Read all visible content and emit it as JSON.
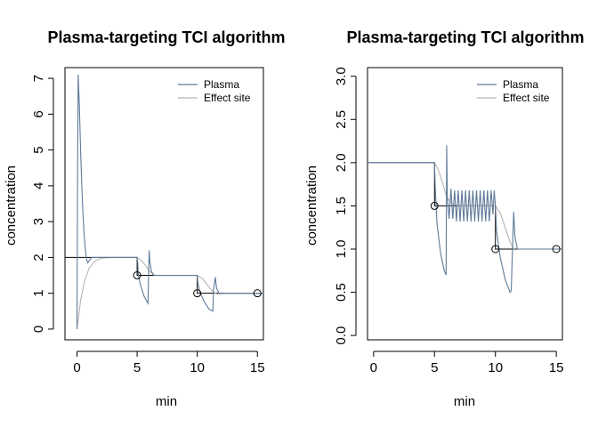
{
  "chart_data": [
    {
      "type": "line",
      "title": "Plasma-targeting TCI algorithm",
      "xlabel": "min",
      "ylabel": "concentration",
      "xlim": [
        -1,
        15.5
      ],
      "ylim": [
        -0.3,
        7.3
      ],
      "xticks": [
        0,
        5,
        10,
        15
      ],
      "yticks": [
        0,
        1,
        2,
        3,
        4,
        5,
        6,
        7
      ],
      "legend": {
        "position": "top-right",
        "entries": [
          "Plasma",
          "Effect site"
        ]
      },
      "colors": {
        "plasma": "#5f7a99",
        "effect": "#b5b5b5",
        "target": "#000000"
      },
      "target_series": {
        "x": [
          -1,
          0,
          0,
          5,
          5,
          10,
          10,
          15.5
        ],
        "y": [
          2,
          2,
          2,
          2,
          1.5,
          1.5,
          1,
          1
        ]
      },
      "target_points": {
        "x": [
          5,
          10,
          15
        ],
        "y": [
          1.5,
          1.0,
          1.0
        ]
      },
      "series": [
        {
          "name": "Plasma",
          "x": [
            0,
            0.05,
            0.1,
            0.2,
            0.3,
            0.4,
            0.5,
            0.6,
            0.7,
            0.8,
            0.9,
            1.0,
            1.1,
            1.2,
            1.5,
            2,
            3,
            4,
            4.9,
            5.0,
            5.05,
            5.1,
            5.3,
            5.6,
            5.9,
            6.0,
            6.05,
            6.2,
            6.4,
            6.6,
            7,
            8,
            9,
            9.9,
            10.0,
            10.05,
            10.2,
            10.6,
            11.0,
            11.3,
            11.35,
            11.5,
            11.6,
            11.8,
            12,
            13,
            14,
            15,
            15.5
          ],
          "y": [
            0,
            4.5,
            7.1,
            6.2,
            5.0,
            4.0,
            3.2,
            2.6,
            2.2,
            1.95,
            1.85,
            1.9,
            1.95,
            2.0,
            2.0,
            2.0,
            2.0,
            2.0,
            2.0,
            2.0,
            1.85,
            1.5,
            1.2,
            0.9,
            0.72,
            2.2,
            1.9,
            1.6,
            1.5,
            1.5,
            1.5,
            1.5,
            1.5,
            1.5,
            1.5,
            1.3,
            1.05,
            0.75,
            0.55,
            0.5,
            1.1,
            1.45,
            1.15,
            1.0,
            1.0,
            1.0,
            1.0,
            1.0,
            1.0
          ]
        },
        {
          "name": "Effect site",
          "x": [
            0,
            0.3,
            0.6,
            1.0,
            1.5,
            2,
            3,
            4,
            5.0,
            5.3,
            5.7,
            6.0,
            6.5,
            7,
            8,
            9,
            10.0,
            10.4,
            10.8,
            11.2,
            11.6,
            12,
            13,
            15.5
          ],
          "y": [
            0,
            0.8,
            1.3,
            1.7,
            1.9,
            1.98,
            2.0,
            2.0,
            2.0,
            1.93,
            1.78,
            1.62,
            1.5,
            1.5,
            1.5,
            1.5,
            1.5,
            1.42,
            1.25,
            1.08,
            0.98,
            0.99,
            1.0,
            1.0
          ]
        }
      ]
    },
    {
      "type": "line",
      "title": "Plasma-targeting TCI algorithm",
      "xlabel": "min",
      "ylabel": "concentration",
      "xlim": [
        -0.5,
        15.5
      ],
      "ylim": [
        -0.05,
        3.1
      ],
      "xticks": [
        0,
        5,
        10,
        15
      ],
      "yticks": [
        0.0,
        0.5,
        1.0,
        1.5,
        2.0,
        2.5,
        3.0
      ],
      "ytick_labels": [
        "0.0",
        "0.5",
        "1.0",
        "1.5",
        "2.0",
        "2.5",
        "3.0"
      ],
      "legend": {
        "position": "top-right",
        "entries": [
          "Plasma",
          "Effect site"
        ]
      },
      "colors": {
        "plasma": "#5f7a99",
        "effect": "#b5b5b5",
        "target": "#000000"
      },
      "target_series": {
        "x": [
          -0.5,
          5,
          5,
          10,
          10,
          15.5
        ],
        "y": [
          2,
          2,
          1.5,
          1.5,
          1,
          1
        ]
      },
      "target_points": {
        "x": [
          5,
          10,
          15
        ],
        "y": [
          1.5,
          1.0,
          1.0
        ]
      },
      "series": [
        {
          "name": "Plasma",
          "x": [
            -0.5,
            4.95,
            5.0,
            5.05,
            5.2,
            5.5,
            5.8,
            5.95,
            6.0,
            6.05,
            6.2,
            6.35,
            6.5,
            6.65,
            6.8,
            6.95,
            7.1,
            7.25,
            7.4,
            7.55,
            7.7,
            7.85,
            8.0,
            8.15,
            8.3,
            8.45,
            8.6,
            8.75,
            8.9,
            9.05,
            9.2,
            9.35,
            9.5,
            9.65,
            9.8,
            9.9,
            10.0,
            10.1,
            10.4,
            10.8,
            11.2,
            11.3,
            11.4,
            11.5,
            11.6,
            11.8,
            12,
            13,
            15.5
          ],
          "y": [
            2,
            2,
            2,
            1.75,
            1.3,
            0.95,
            0.75,
            0.7,
            2.2,
            1.6,
            1.35,
            1.7,
            1.35,
            1.68,
            1.32,
            1.68,
            1.32,
            1.68,
            1.32,
            1.68,
            1.32,
            1.68,
            1.32,
            1.68,
            1.32,
            1.68,
            1.32,
            1.68,
            1.32,
            1.68,
            1.32,
            1.68,
            1.32,
            1.68,
            1.4,
            1.68,
            1.5,
            1.2,
            0.9,
            0.65,
            0.5,
            0.52,
            1.0,
            1.43,
            1.15,
            1.0,
            1.0,
            1.0,
            1.0
          ]
        },
        {
          "name": "Effect site",
          "x": [
            -0.5,
            5.0,
            5.3,
            5.7,
            6.0,
            6.5,
            7.0,
            8,
            9,
            10.0,
            10.4,
            10.8,
            11.2,
            11.6,
            12,
            13,
            15.5
          ],
          "y": [
            2,
            2,
            1.92,
            1.75,
            1.6,
            1.52,
            1.5,
            1.5,
            1.5,
            1.5,
            1.42,
            1.25,
            1.08,
            0.99,
            1.0,
            1.0,
            1.0
          ]
        }
      ]
    }
  ]
}
